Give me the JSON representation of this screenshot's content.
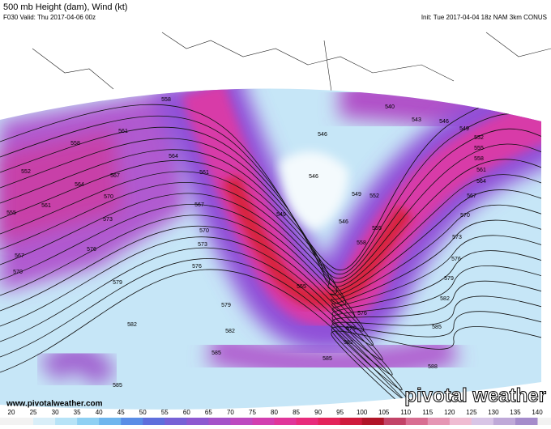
{
  "header": {
    "title": "500 mb Height (dam), Wind (kt)",
    "valid": "F030 Valid: Thu 2017-04-06 00z",
    "init": "Init: Tue 2017-04-04 18z NAM 3km CONUS"
  },
  "contour_labels": [
    "558",
    "561",
    "558",
    "552",
    "564",
    "567",
    "564",
    "570",
    "561",
    "555",
    "573",
    "561",
    "567",
    "570",
    "573",
    "576",
    "576",
    "567",
    "570",
    "579",
    "579",
    "582",
    "582",
    "585",
    "585",
    "549",
    "546",
    "546",
    "540",
    "543",
    "546",
    "549",
    "552",
    "555",
    "558",
    "561",
    "564",
    "567",
    "570",
    "573",
    "576",
    "579",
    "582",
    "585",
    "588",
    "555",
    "549",
    "552",
    "546",
    "555",
    "558",
    "585",
    "582",
    "579",
    "576"
  ],
  "colorbar": {
    "ticks": [
      20,
      25,
      30,
      35,
      40,
      45,
      50,
      55,
      60,
      65,
      70,
      75,
      80,
      85,
      90,
      95,
      100,
      105,
      110,
      115,
      120,
      125,
      130,
      135,
      140
    ],
    "colors": [
      "#f2f2f2",
      "#d9eef8",
      "#b7e3f7",
      "#8fd0f3",
      "#6fb6ee",
      "#5a8de6",
      "#5f6fdc",
      "#7762d6",
      "#8e59d0",
      "#a552c8",
      "#bd4ac0",
      "#d23fb0",
      "#e0369a",
      "#e82c7c",
      "#e3245b",
      "#cf1b3d",
      "#b01428",
      "#c24468",
      "#d86e92",
      "#e596b4",
      "#efbcd2",
      "#d8c5e6",
      "#bfa9d8",
      "#a58ccb"
    ]
  },
  "watermark": "www.pivotalweather.com",
  "logo": "pivotal weather"
}
